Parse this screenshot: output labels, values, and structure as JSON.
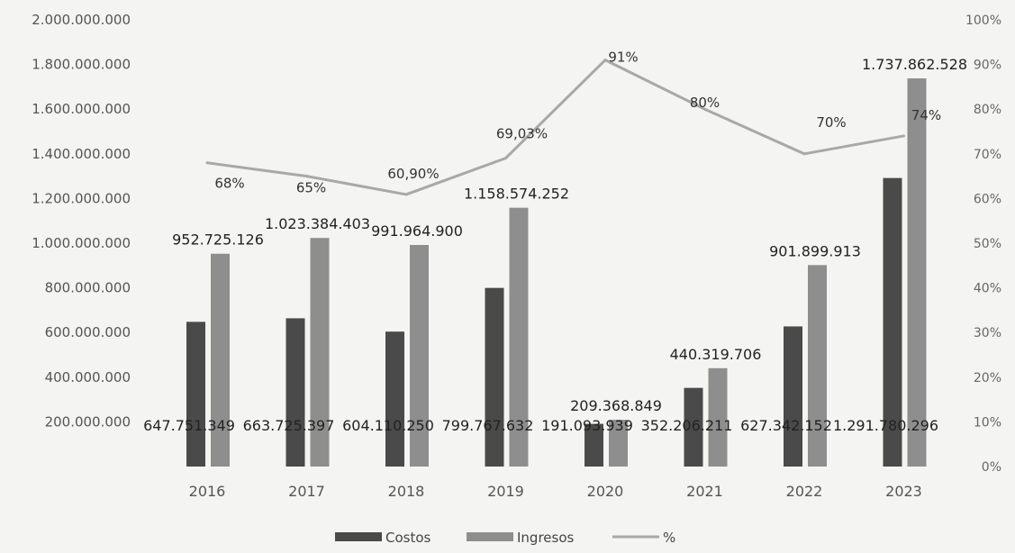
{
  "chart_data": {
    "type": "bar",
    "categories": [
      "2016",
      "2017",
      "2018",
      "2019",
      "2020",
      "2021",
      "2022",
      "2023"
    ],
    "series": [
      {
        "name": "Costos",
        "kind": "bar",
        "axis": "left",
        "color": "#4a4a4a",
        "values": [
          647751349,
          663725397,
          604110250,
          799767632,
          191093939,
          352206211,
          627342152,
          1291780296
        ],
        "labels": [
          "647.751.349",
          "663.725.397",
          "604.110.250",
          "799.767.632",
          "191.093.939",
          "352.206.211",
          "627.342.152",
          "1.291.780.296"
        ]
      },
      {
        "name": "Ingresos",
        "kind": "bar",
        "axis": "left",
        "color": "#8e8e8e",
        "values": [
          952725126,
          1023384403,
          991964900,
          1158574252,
          209368849,
          440319706,
          901899913,
          1737862528
        ],
        "labels": [
          "952.725.126",
          "1.023.384.403",
          "991.964.900",
          "1.158.574.252",
          "209.368.849",
          "440.319.706",
          "901.899.913",
          "1.737.862.528"
        ]
      },
      {
        "name": "%",
        "kind": "line",
        "axis": "right",
        "color": "#a8a8a8",
        "values": [
          68,
          65,
          60.9,
          69.03,
          91,
          80,
          70,
          74
        ],
        "labels": [
          "68%",
          "65%",
          "60,90%",
          "69,03%",
          "91%",
          "80%",
          "70%",
          "74%"
        ]
      }
    ],
    "left_axis": {
      "range": [
        0,
        2000000000
      ],
      "ticks": [
        0,
        200000000,
        400000000,
        600000000,
        800000000,
        1000000000,
        1200000000,
        1400000000,
        1600000000,
        1800000000,
        2000000000
      ],
      "tick_labels": [
        "",
        "200.000.000",
        "400.000.000",
        "600.000.000",
        "800.000.000",
        "1.000.000.000",
        "1.200.000.000",
        "1.400.000.000",
        "1.600.000.000",
        "1.800.000.000",
        "2.000.000.000"
      ]
    },
    "right_axis": {
      "range": [
        0,
        100
      ],
      "ticks": [
        0,
        10,
        20,
        30,
        40,
        50,
        60,
        70,
        80,
        90,
        100
      ],
      "tick_labels": [
        "0%",
        "10%",
        "20%",
        "30%",
        "40%",
        "50%",
        "60%",
        "70%",
        "80%",
        "90%",
        "100%"
      ]
    },
    "grid": false,
    "legend": {
      "position": "bottom",
      "entries": [
        "Costos",
        "Ingresos",
        "%"
      ]
    }
  }
}
